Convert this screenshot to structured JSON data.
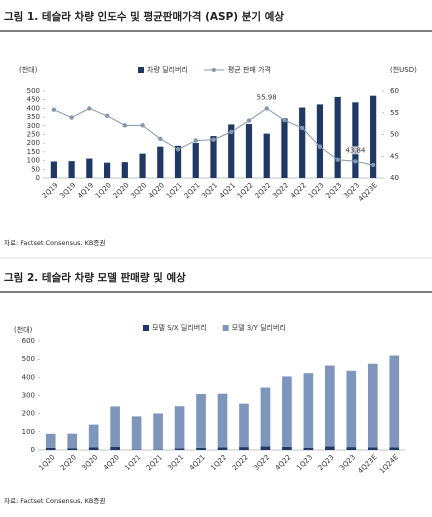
{
  "chart_data": [
    {
      "type": "combo",
      "title": "그림 1. 테슬라 차량 인도수 및 평균판매가격 (ASP) 분기 예상",
      "source": "자료: Factset Consensus, KB증권",
      "ylabel": "(천대)",
      "y2label": "(천USD)",
      "categories": [
        "2Q19",
        "3Q19",
        "4Q19",
        "1Q20",
        "2Q20",
        "3Q20",
        "4Q20",
        "1Q21",
        "2Q21",
        "3Q21",
        "4Q21",
        "1Q22",
        "2Q22",
        "3Q22",
        "4Q22",
        "1Q23",
        "2Q23",
        "3Q23",
        "4Q23E"
      ],
      "series": [
        {
          "name": "차량 딜리버리",
          "type": "bar",
          "color": "#1f3864",
          "values": [
            95,
            97,
            112,
            88,
            91,
            140,
            180,
            185,
            201,
            241,
            308,
            310,
            255,
            343,
            405,
            423,
            466,
            435,
            473
          ]
        },
        {
          "name": "평균 판매 가격",
          "type": "line",
          "axis": "y2",
          "color": "#8497b0",
          "values": [
            55.7,
            53.9,
            56.0,
            54.3,
            52.1,
            52.1,
            49.0,
            46.6,
            48.6,
            48.8,
            50.6,
            53.2,
            55.98,
            53.3,
            51.5,
            47.2,
            44.2,
            43.84,
            43.0
          ],
          "value_labels": [
            null,
            null,
            null,
            null,
            null,
            null,
            null,
            null,
            null,
            null,
            null,
            null,
            "55.98",
            null,
            null,
            null,
            null,
            "43.84",
            null
          ]
        }
      ],
      "ylim": [
        0,
        500
      ],
      "yticks": [
        0,
        50,
        100,
        150,
        200,
        250,
        300,
        350,
        400,
        450,
        500
      ],
      "y2lim": [
        40,
        60
      ],
      "y2ticks": [
        40,
        45,
        50,
        55,
        60
      ],
      "grid": false,
      "legend": "top"
    },
    {
      "type": "stacked_bar",
      "title": "그림 2. 테슬라 차량 모델 판매량 및 예상",
      "source": "자료: Factset Consensus, KB증권",
      "ylabel": "(천대)",
      "categories": [
        "1Q20",
        "2Q20",
        "3Q20",
        "4Q20",
        "1Q21",
        "2Q21",
        "3Q21",
        "4Q21",
        "1Q22",
        "2Q22",
        "3Q22",
        "4Q22",
        "1Q23",
        "2Q23",
        "3Q23",
        "4Q23E",
        "1Q24E"
      ],
      "series": [
        {
          "name": "모델 S/X 딜리버리",
          "color": "#1f3864",
          "values": [
            12,
            10,
            15,
            18,
            2,
            2,
            9,
            12,
            15,
            16,
            19,
            17,
            11,
            19,
            16,
            15,
            15
          ]
        },
        {
          "name": "모델 3/Y 딜리버리",
          "color": "#7f96bc",
          "values": [
            77,
            80,
            125,
            222,
            183,
            199,
            232,
            296,
            295,
            239,
            325,
            388,
            412,
            446,
            420,
            460,
            505
          ]
        }
      ],
      "ylim": [
        0,
        600
      ],
      "yticks": [
        0,
        100,
        200,
        300,
        400,
        500,
        600
      ],
      "grid": false,
      "legend": "top"
    }
  ]
}
